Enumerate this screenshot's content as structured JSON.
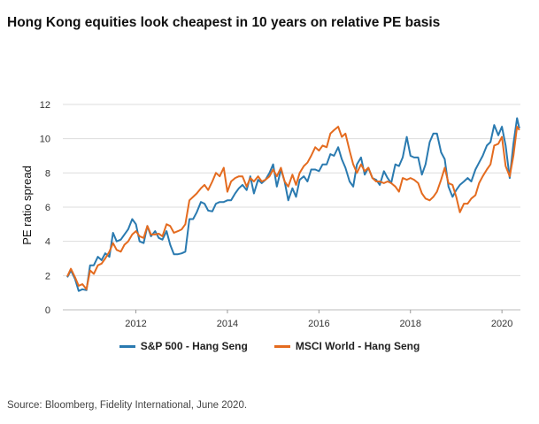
{
  "chart_data": {
    "type": "line",
    "title": "Hong Kong equities look cheapest in 10 years on relative PE basis",
    "xlabel": "",
    "ylabel": "PE ratio spread",
    "xlim": [
      2010.5,
      2020.5
    ],
    "ylim": [
      0,
      12
    ],
    "x_ticks": [
      2012,
      2014,
      2016,
      2018,
      2020
    ],
    "y_ticks": [
      0,
      2,
      4,
      6,
      8,
      10,
      12
    ],
    "grid": "horizontal",
    "legend": "bottom",
    "source": "Source: Bloomberg, Fidelity International, June 2020.",
    "series": [
      {
        "name": "S&P 500 - Hang Seng",
        "color": "#2a7ab0",
        "points": [
          [
            2010.5,
            1.9
          ],
          [
            2010.58,
            2.3
          ],
          [
            2010.67,
            1.8
          ],
          [
            2010.75,
            1.1
          ],
          [
            2010.83,
            1.2
          ],
          [
            2010.92,
            1.15
          ],
          [
            2011.0,
            2.6
          ],
          [
            2011.08,
            2.6
          ],
          [
            2011.17,
            3.1
          ],
          [
            2011.25,
            2.9
          ],
          [
            2011.33,
            3.3
          ],
          [
            2011.42,
            3.1
          ],
          [
            2011.5,
            4.5
          ],
          [
            2011.58,
            4.0
          ],
          [
            2011.67,
            4.1
          ],
          [
            2011.75,
            4.4
          ],
          [
            2011.83,
            4.7
          ],
          [
            2011.92,
            5.3
          ],
          [
            2012.0,
            5.0
          ],
          [
            2012.08,
            4.0
          ],
          [
            2012.17,
            3.9
          ],
          [
            2012.25,
            4.9
          ],
          [
            2012.33,
            4.3
          ],
          [
            2012.42,
            4.6
          ],
          [
            2012.5,
            4.2
          ],
          [
            2012.58,
            4.1
          ],
          [
            2012.67,
            4.6
          ],
          [
            2012.75,
            3.8
          ],
          [
            2012.83,
            3.25
          ],
          [
            2012.92,
            3.25
          ],
          [
            2013.0,
            3.3
          ],
          [
            2013.08,
            3.4
          ],
          [
            2013.17,
            5.3
          ],
          [
            2013.25,
            5.3
          ],
          [
            2013.33,
            5.7
          ],
          [
            2013.42,
            6.3
          ],
          [
            2013.5,
            6.2
          ],
          [
            2013.58,
            5.8
          ],
          [
            2013.67,
            5.75
          ],
          [
            2013.75,
            6.2
          ],
          [
            2013.83,
            6.3
          ],
          [
            2013.92,
            6.3
          ],
          [
            2014.0,
            6.4
          ],
          [
            2014.08,
            6.4
          ],
          [
            2014.17,
            6.8
          ],
          [
            2014.25,
            7.1
          ],
          [
            2014.33,
            7.3
          ],
          [
            2014.42,
            7.0
          ],
          [
            2014.5,
            7.8
          ],
          [
            2014.58,
            6.8
          ],
          [
            2014.67,
            7.6
          ],
          [
            2014.75,
            7.4
          ],
          [
            2014.83,
            7.6
          ],
          [
            2014.92,
            8.0
          ],
          [
            2015.0,
            8.5
          ],
          [
            2015.08,
            7.2
          ],
          [
            2015.17,
            8.2
          ],
          [
            2015.25,
            7.5
          ],
          [
            2015.33,
            6.4
          ],
          [
            2015.42,
            7.1
          ],
          [
            2015.5,
            6.6
          ],
          [
            2015.58,
            7.6
          ],
          [
            2015.67,
            7.8
          ],
          [
            2015.75,
            7.5
          ],
          [
            2015.83,
            8.2
          ],
          [
            2015.92,
            8.2
          ],
          [
            2016.0,
            8.1
          ],
          [
            2016.08,
            8.5
          ],
          [
            2016.17,
            8.5
          ],
          [
            2016.25,
            9.1
          ],
          [
            2016.33,
            9.0
          ],
          [
            2016.42,
            9.5
          ],
          [
            2016.5,
            8.8
          ],
          [
            2016.58,
            8.3
          ],
          [
            2016.67,
            7.5
          ],
          [
            2016.75,
            7.2
          ],
          [
            2016.83,
            8.5
          ],
          [
            2016.92,
            8.9
          ],
          [
            2017.0,
            7.9
          ],
          [
            2017.08,
            8.3
          ],
          [
            2017.17,
            7.7
          ],
          [
            2017.25,
            7.6
          ],
          [
            2017.33,
            7.3
          ],
          [
            2017.42,
            8.1
          ],
          [
            2017.5,
            7.7
          ],
          [
            2017.58,
            7.4
          ],
          [
            2017.67,
            8.5
          ],
          [
            2017.75,
            8.4
          ],
          [
            2017.83,
            8.9
          ],
          [
            2017.92,
            10.1
          ],
          [
            2018.0,
            9.0
          ],
          [
            2018.08,
            8.9
          ],
          [
            2018.17,
            8.9
          ],
          [
            2018.25,
            7.9
          ],
          [
            2018.33,
            8.5
          ],
          [
            2018.42,
            9.8
          ],
          [
            2018.5,
            10.3
          ],
          [
            2018.58,
            10.3
          ],
          [
            2018.67,
            9.2
          ],
          [
            2018.75,
            8.8
          ],
          [
            2018.83,
            7.2
          ],
          [
            2018.92,
            6.6
          ],
          [
            2019.0,
            7.0
          ],
          [
            2019.08,
            7.3
          ],
          [
            2019.17,
            7.5
          ],
          [
            2019.25,
            7.7
          ],
          [
            2019.33,
            7.5
          ],
          [
            2019.42,
            8.2
          ],
          [
            2019.5,
            8.6
          ],
          [
            2019.58,
            9.0
          ],
          [
            2019.67,
            9.6
          ],
          [
            2019.75,
            9.8
          ],
          [
            2019.83,
            10.8
          ],
          [
            2019.92,
            10.2
          ],
          [
            2020.0,
            10.7
          ],
          [
            2020.08,
            9.6
          ],
          [
            2020.17,
            7.7
          ],
          [
            2020.25,
            9.7
          ],
          [
            2020.33,
            11.2
          ],
          [
            2020.38,
            10.6
          ]
        ]
      },
      {
        "name": "MSCI World - Hang Seng",
        "color": "#e46b1f",
        "points": [
          [
            2010.5,
            1.95
          ],
          [
            2010.58,
            2.4
          ],
          [
            2010.67,
            1.9
          ],
          [
            2010.75,
            1.4
          ],
          [
            2010.83,
            1.5
          ],
          [
            2010.92,
            1.2
          ],
          [
            2011.0,
            2.3
          ],
          [
            2011.08,
            2.1
          ],
          [
            2011.17,
            2.6
          ],
          [
            2011.25,
            2.7
          ],
          [
            2011.33,
            3.0
          ],
          [
            2011.42,
            3.4
          ],
          [
            2011.5,
            3.9
          ],
          [
            2011.58,
            3.5
          ],
          [
            2011.67,
            3.4
          ],
          [
            2011.75,
            3.8
          ],
          [
            2011.83,
            4.0
          ],
          [
            2011.92,
            4.4
          ],
          [
            2012.0,
            4.6
          ],
          [
            2012.08,
            4.3
          ],
          [
            2012.17,
            4.2
          ],
          [
            2012.25,
            4.9
          ],
          [
            2012.33,
            4.4
          ],
          [
            2012.42,
            4.4
          ],
          [
            2012.5,
            4.45
          ],
          [
            2012.58,
            4.3
          ],
          [
            2012.67,
            5.0
          ],
          [
            2012.75,
            4.9
          ],
          [
            2012.83,
            4.5
          ],
          [
            2012.92,
            4.6
          ],
          [
            2013.0,
            4.7
          ],
          [
            2013.08,
            5.0
          ],
          [
            2013.17,
            6.4
          ],
          [
            2013.25,
            6.6
          ],
          [
            2013.33,
            6.8
          ],
          [
            2013.42,
            7.1
          ],
          [
            2013.5,
            7.3
          ],
          [
            2013.58,
            7.0
          ],
          [
            2013.67,
            7.5
          ],
          [
            2013.75,
            8.0
          ],
          [
            2013.83,
            7.8
          ],
          [
            2013.92,
            8.3
          ],
          [
            2014.0,
            6.9
          ],
          [
            2014.08,
            7.5
          ],
          [
            2014.17,
            7.7
          ],
          [
            2014.25,
            7.8
          ],
          [
            2014.33,
            7.8
          ],
          [
            2014.42,
            7.2
          ],
          [
            2014.5,
            7.7
          ],
          [
            2014.58,
            7.5
          ],
          [
            2014.67,
            7.8
          ],
          [
            2014.75,
            7.5
          ],
          [
            2014.83,
            7.6
          ],
          [
            2014.92,
            7.8
          ],
          [
            2015.0,
            8.2
          ],
          [
            2015.08,
            7.8
          ],
          [
            2015.17,
            8.3
          ],
          [
            2015.25,
            7.5
          ],
          [
            2015.33,
            7.2
          ],
          [
            2015.42,
            7.9
          ],
          [
            2015.5,
            7.3
          ],
          [
            2015.58,
            8.0
          ],
          [
            2015.67,
            8.4
          ],
          [
            2015.75,
            8.6
          ],
          [
            2015.83,
            9.0
          ],
          [
            2015.92,
            9.5
          ],
          [
            2016.0,
            9.3
          ],
          [
            2016.08,
            9.6
          ],
          [
            2016.17,
            9.5
          ],
          [
            2016.25,
            10.3
          ],
          [
            2016.33,
            10.5
          ],
          [
            2016.42,
            10.7
          ],
          [
            2016.5,
            10.1
          ],
          [
            2016.58,
            10.3
          ],
          [
            2016.67,
            9.3
          ],
          [
            2016.75,
            8.5
          ],
          [
            2016.83,
            8.0
          ],
          [
            2016.92,
            8.5
          ],
          [
            2017.0,
            8.1
          ],
          [
            2017.08,
            8.3
          ],
          [
            2017.17,
            7.7
          ],
          [
            2017.25,
            7.5
          ],
          [
            2017.33,
            7.5
          ],
          [
            2017.42,
            7.4
          ],
          [
            2017.5,
            7.5
          ],
          [
            2017.58,
            7.4
          ],
          [
            2017.67,
            7.2
          ],
          [
            2017.75,
            6.9
          ],
          [
            2017.83,
            7.7
          ],
          [
            2017.92,
            7.6
          ],
          [
            2018.0,
            7.7
          ],
          [
            2018.08,
            7.6
          ],
          [
            2018.17,
            7.4
          ],
          [
            2018.25,
            6.8
          ],
          [
            2018.33,
            6.5
          ],
          [
            2018.42,
            6.4
          ],
          [
            2018.5,
            6.6
          ],
          [
            2018.58,
            6.9
          ],
          [
            2018.67,
            7.6
          ],
          [
            2018.75,
            8.3
          ],
          [
            2018.83,
            7.4
          ],
          [
            2018.92,
            7.3
          ],
          [
            2019.0,
            6.6
          ],
          [
            2019.08,
            5.7
          ],
          [
            2019.17,
            6.2
          ],
          [
            2019.25,
            6.2
          ],
          [
            2019.33,
            6.5
          ],
          [
            2019.42,
            6.7
          ],
          [
            2019.5,
            7.4
          ],
          [
            2019.58,
            7.8
          ],
          [
            2019.67,
            8.2
          ],
          [
            2019.75,
            8.5
          ],
          [
            2019.83,
            9.6
          ],
          [
            2019.92,
            9.7
          ],
          [
            2020.0,
            10.1
          ],
          [
            2020.08,
            8.4
          ],
          [
            2020.17,
            7.8
          ],
          [
            2020.25,
            9.0
          ],
          [
            2020.33,
            10.7
          ],
          [
            2020.38,
            10.5
          ]
        ]
      }
    ]
  }
}
